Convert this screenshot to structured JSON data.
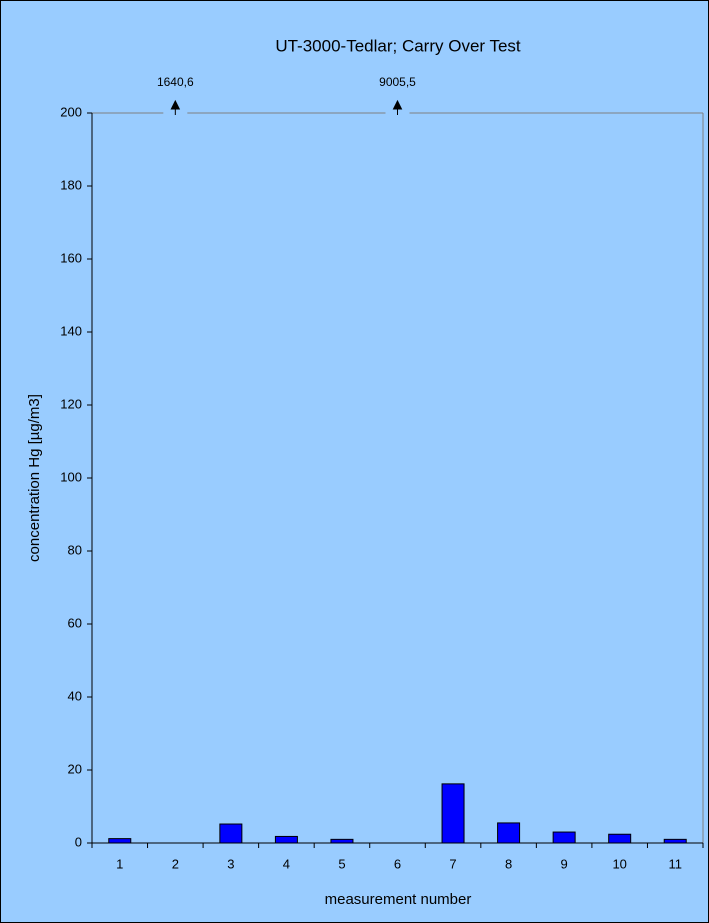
{
  "chart_data": {
    "type": "bar",
    "title": "UT-3000-Tedlar; Carry Over Test",
    "xlabel": "measurement number",
    "ylabel": "concentration Hg [µg/m3]",
    "categories": [
      "1",
      "2",
      "3",
      "4",
      "5",
      "6",
      "7",
      "8",
      "9",
      "10",
      "11"
    ],
    "values": [
      1.2,
      1640.6,
      5.2,
      1.8,
      1.0,
      9005.5,
      16.2,
      5.5,
      3.0,
      2.4,
      1.0
    ],
    "value_labels": [
      null,
      "1640,6",
      null,
      null,
      null,
      "9005,5",
      null,
      null,
      null,
      null,
      null
    ],
    "color": "#0000ff",
    "ylim": [
      0,
      200
    ],
    "yticks": [
      0,
      20,
      40,
      60,
      80,
      100,
      120,
      140,
      160,
      180,
      200
    ],
    "grid": false
  }
}
